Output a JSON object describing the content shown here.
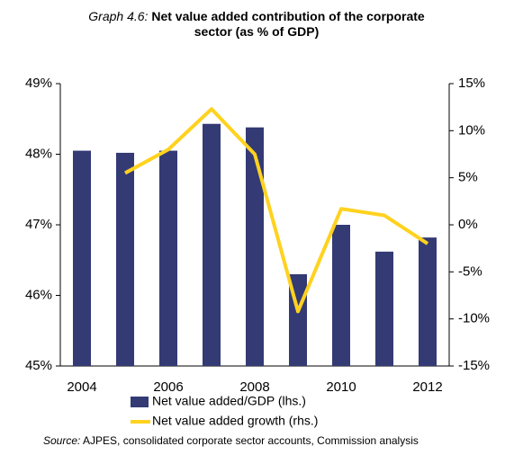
{
  "chart_data": {
    "type": "bar_line",
    "title_prefix": "Graph 4.6:",
    "title": "Net value added contribution of the corporate sector (as % of GDP)",
    "source_prefix": "Source:",
    "source": "AJPES, consolidated corporate sector accounts, Commission analysis",
    "categories": [
      "2004",
      null,
      "2006",
      null,
      "2008",
      null,
      "2010",
      null,
      "2012"
    ],
    "series": [
      {
        "name": "Net value added/GDP (lhs.)",
        "color": "#333a74",
        "type": "bar",
        "values": [
          48.05,
          48.02,
          48.05,
          48.43,
          48.38,
          46.3,
          47.0,
          46.62,
          46.82
        ]
      },
      {
        "name": "Net value added growth (rhs.)",
        "color": "#ffd21f",
        "type": "line",
        "axis": "y2",
        "values": [
          null,
          5.5,
          8.0,
          12.3,
          7.5,
          -9.2,
          1.7,
          1.0,
          -2.0
        ]
      }
    ],
    "ylim": [
      45,
      49
    ],
    "yticks": [
      {
        "value": 45,
        "label": "45%"
      },
      {
        "value": 46,
        "label": "46%"
      },
      {
        "value": 47,
        "label": "47%"
      },
      {
        "value": 48,
        "label": "48%"
      },
      {
        "value": 49,
        "label": "49%"
      }
    ],
    "y2lim": [
      -15,
      15
    ],
    "y2ticks": [
      {
        "value": -15,
        "label": "-15%"
      },
      {
        "value": -10,
        "label": "-10%"
      },
      {
        "value": -5,
        "label": "-5%"
      },
      {
        "value": 0,
        "label": "0%"
      },
      {
        "value": 5,
        "label": "5%"
      },
      {
        "value": 10,
        "label": "10%"
      },
      {
        "value": 15,
        "label": "15%"
      }
    ],
    "legend": "bottom"
  }
}
